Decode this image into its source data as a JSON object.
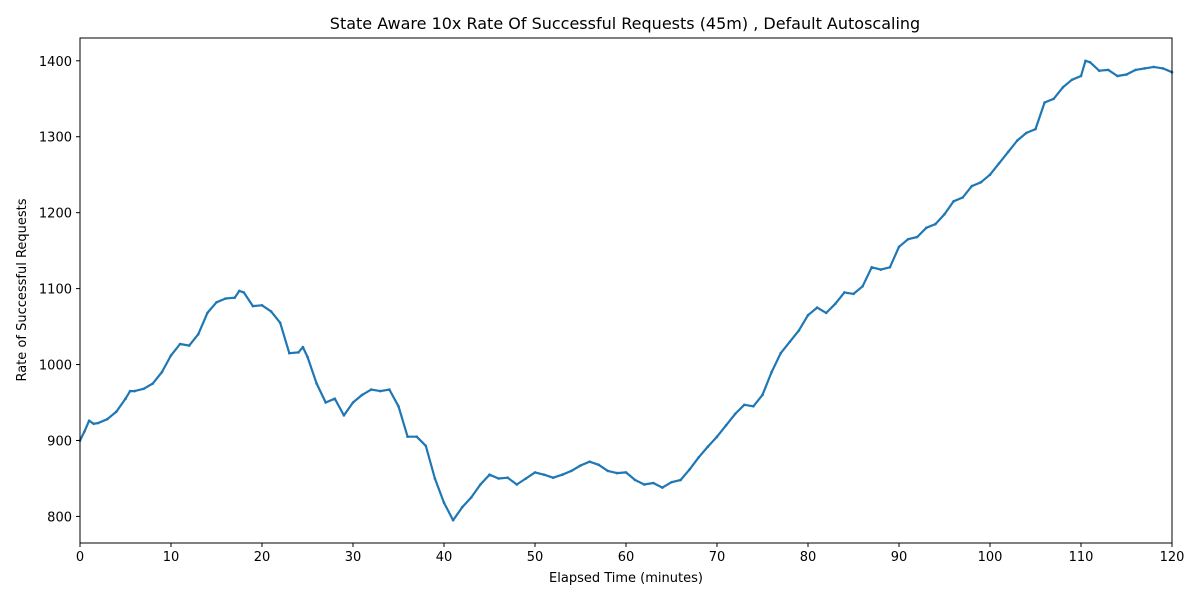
{
  "chart_data": {
    "type": "line",
    "title": "State Aware 10x Rate Of Successful Requests (45m) , Default Autoscaling",
    "xlabel": "Elapsed Time (minutes)",
    "ylabel": "Rate of Successful Requests",
    "xlim": [
      0,
      120
    ],
    "ylim": [
      765,
      1430
    ],
    "xticks": [
      0,
      10,
      20,
      30,
      40,
      50,
      60,
      70,
      80,
      90,
      100,
      110,
      120
    ],
    "yticks": [
      800,
      900,
      1000,
      1100,
      1200,
      1300,
      1400
    ],
    "grid": false,
    "legend": "none",
    "colors": {
      "line": "#1f77b4"
    },
    "series": [
      {
        "x": [
          0,
          0.5,
          1,
          1.5,
          2,
          3,
          4,
          5,
          5.5,
          6,
          7,
          8,
          9,
          10,
          11,
          12,
          13,
          14,
          15,
          16,
          17,
          17.5,
          18,
          19,
          20,
          21,
          22,
          23,
          24,
          24.5,
          25,
          26,
          27,
          28,
          29,
          30,
          31,
          32,
          33,
          34,
          35,
          36,
          37,
          38,
          39,
          40,
          41,
          42,
          43,
          44,
          45,
          46,
          47,
          48,
          49,
          50,
          51,
          52,
          53,
          54,
          55,
          56,
          57,
          58,
          59,
          60,
          61,
          62,
          63,
          64,
          65,
          66,
          67,
          68,
          69,
          70,
          71,
          72,
          73,
          74,
          75,
          76,
          77,
          78,
          79,
          80,
          81,
          82,
          83,
          84,
          85,
          86,
          87,
          88,
          89,
          90,
          91,
          92,
          93,
          94,
          95,
          96,
          97,
          98,
          99,
          100,
          101,
          102,
          103,
          104,
          105,
          106,
          107,
          108,
          109,
          110,
          110.5,
          111,
          112,
          113,
          114,
          115,
          116,
          117,
          118,
          119,
          120
        ],
        "y": [
          900,
          912,
          926,
          922,
          923,
          928,
          938,
          955,
          965,
          965,
          968,
          975,
          990,
          1012,
          1027,
          1025,
          1040,
          1068,
          1082,
          1087,
          1088,
          1097,
          1095,
          1077,
          1078,
          1070,
          1055,
          1015,
          1016,
          1023,
          1010,
          975,
          950,
          955,
          933,
          950,
          960,
          967,
          965,
          967,
          945,
          905,
          905,
          893,
          850,
          818,
          795,
          812,
          825,
          842,
          855,
          850,
          851,
          842,
          850,
          858,
          855,
          851,
          855,
          860,
          867,
          872,
          868,
          860,
          857,
          858,
          848,
          842,
          844,
          838,
          845,
          848,
          862,
          878,
          892,
          905,
          920,
          935,
          947,
          945,
          960,
          990,
          1015,
          1030,
          1045,
          1065,
          1075,
          1068,
          1080,
          1095,
          1093,
          1103,
          1128,
          1125,
          1128,
          1155,
          1165,
          1168,
          1180,
          1185,
          1198,
          1215,
          1220,
          1235,
          1240,
          1250,
          1265,
          1280,
          1295,
          1305,
          1310,
          1345,
          1350,
          1365,
          1375,
          1380,
          1400,
          1398,
          1387,
          1388,
          1380,
          1382,
          1388,
          1390,
          1392,
          1390,
          1385
        ]
      }
    ]
  }
}
